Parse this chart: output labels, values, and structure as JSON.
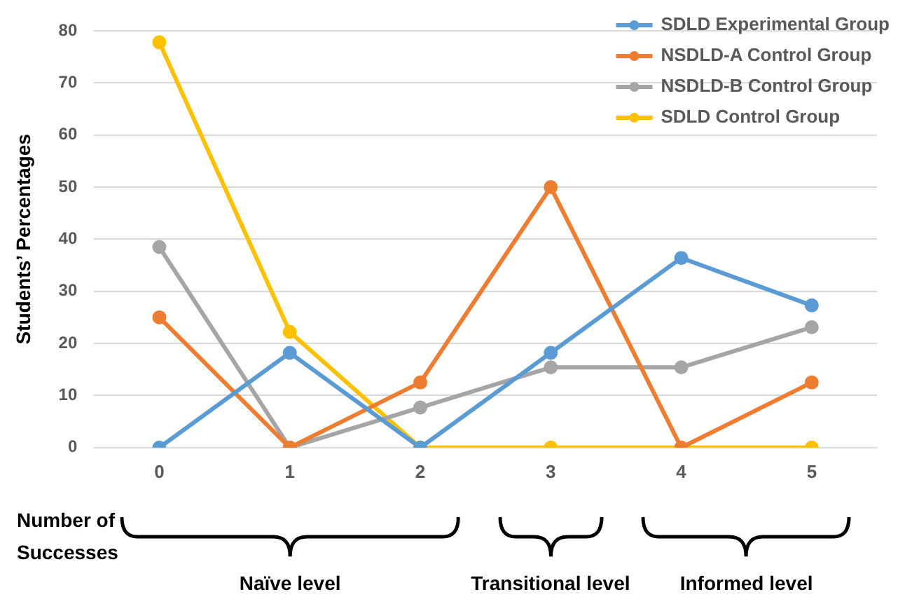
{
  "chart_data": {
    "type": "line",
    "ylabel": "Students’ Percentages",
    "categories": [
      "0",
      "1",
      "2",
      "3",
      "4",
      "5"
    ],
    "series": [
      {
        "name": "SDLD Experimental Group",
        "color": "#5b9bd5",
        "values": [
          0,
          18.2,
          0,
          18.2,
          36.4,
          27.3
        ]
      },
      {
        "name": "NSDLD-A Control Group",
        "color": "#ed7d31",
        "values": [
          25,
          0,
          12.5,
          50,
          0,
          12.5
        ]
      },
      {
        "name": "NSDLD-B Control Group",
        "color": "#a5a5a5",
        "values": [
          38.5,
          0,
          7.7,
          15.4,
          15.4,
          23.1
        ]
      },
      {
        "name": "SDLD Control Group",
        "color": "#ffc000",
        "values": [
          77.8,
          22.2,
          0,
          0,
          0,
          0
        ]
      }
    ],
    "ylim": [
      0,
      80
    ],
    "yticks": [
      0,
      10,
      20,
      30,
      40,
      50,
      60,
      70,
      80
    ],
    "grid": "y",
    "legend": "top right",
    "marker": "circle",
    "line_style": "solid",
    "annotations": [
      "Number of Successes",
      "Naïve level",
      "Transitional level",
      "Informed level"
    ]
  }
}
